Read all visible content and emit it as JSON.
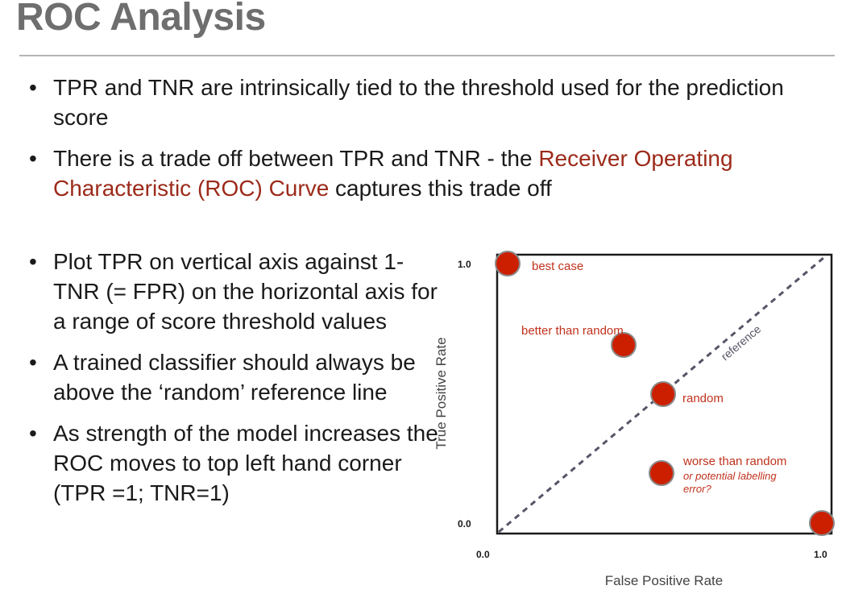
{
  "slide": {
    "title": "ROC Analysis"
  },
  "top_bullets": [
    {
      "text": "TPR and TNR are intrinsically tied to the threshold used for the prediction score"
    },
    {
      "pre": "There is a trade off between TPR and TNR - the ",
      "highlight": "Receiver Operating Characteristic (ROC) Curve",
      "post": " captures this trade off"
    }
  ],
  "left_bullets": [
    {
      "text": "Plot TPR on vertical axis against 1-TNR (= FPR) on the horizontal axis for a range of score threshold values"
    },
    {
      "text": "A trained classifier should always be above the ‘random’ reference line"
    },
    {
      "text": "As strength of the model increases the ROC moves to top left hand corner (TPR =1; TNR=1)"
    }
  ],
  "diagram": {
    "ylabel": "True Positive Rate",
    "xlabel": "False Positive Rate",
    "y_ticks": [
      "1.0",
      "0.0"
    ],
    "x_ticks": [
      "0.0",
      "1.0"
    ],
    "reference_label": "reference",
    "points": {
      "best": {
        "label": "best case"
      },
      "better": {
        "label": "better than random"
      },
      "random": {
        "label": "random"
      },
      "worse": {
        "label": "worse than random",
        "note_line1": "or potential labelling",
        "note_line2": "error?"
      }
    },
    "colors": {
      "point_fill": "#cc1f00",
      "point_stroke": "#8a8a8a",
      "label": "#c0321d",
      "reference": "#555566"
    }
  }
}
